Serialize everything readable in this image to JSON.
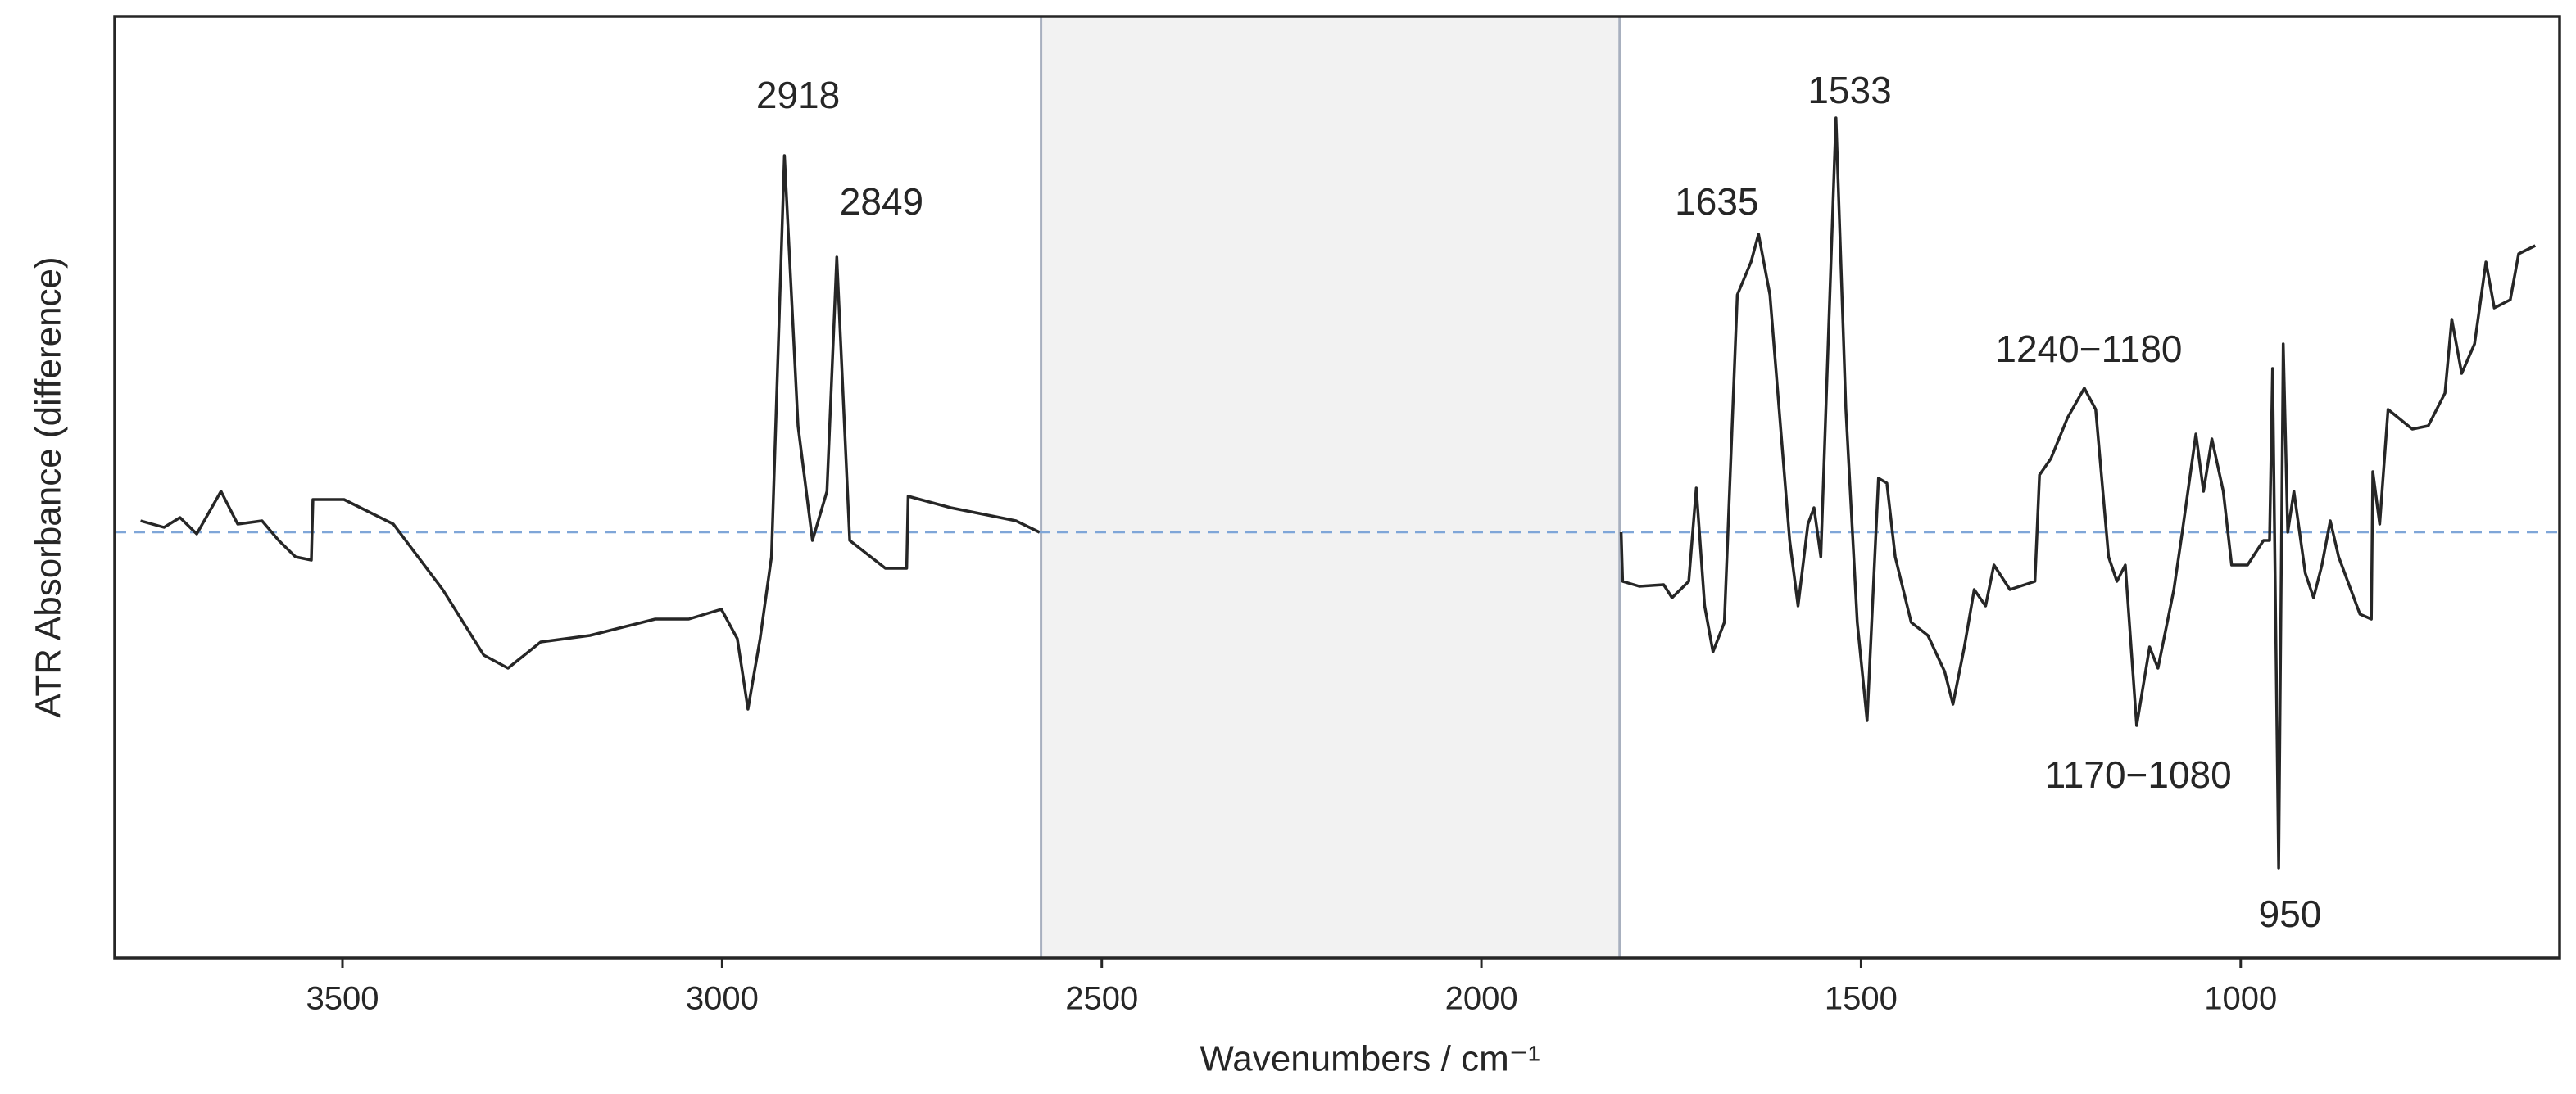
{
  "chart_data": {
    "type": "line",
    "xlabel": "Wavenumbers / cm⁻¹",
    "ylabel": "ATR Absorbance (difference)",
    "xlim": [
      3800,
      580
    ],
    "ylim": [
      -26,
      31.5
    ],
    "xticks": [
      3500,
      3000,
      2500,
      2000,
      1500,
      1000
    ],
    "baseline": 0,
    "excluded_region": [
      2580,
      1818
    ],
    "color": "#262626",
    "x": [
      3766,
      3735,
      3714,
      3692,
      3660,
      3638,
      3606,
      3584,
      3562,
      3541,
      3539,
      3498,
      3433,
      3368,
      3314,
      3282,
      3239,
      3174,
      3088,
      3044,
      3001,
      2980,
      2966,
      2950,
      2935,
      2918,
      2900,
      2881,
      2862,
      2849,
      2832,
      2785,
      2757,
      2755,
      2699,
      2645,
      2613,
      2582,
      2200,
      1816,
      1814,
      1792,
      1760,
      1749,
      1727,
      1717,
      1706,
      1695,
      1680,
      1663,
      1645,
      1635,
      1620,
      1594,
      1583,
      1570,
      1562,
      1553,
      1533,
      1520,
      1505,
      1492,
      1477,
      1466,
      1455,
      1434,
      1412,
      1390,
      1379,
      1364,
      1351,
      1336,
      1325,
      1304,
      1271,
      1265,
      1250,
      1228,
      1206,
      1191,
      1174,
      1163,
      1152,
      1137,
      1120,
      1109,
      1088,
      1077,
      1059,
      1049,
      1038,
      1023,
      1012,
      991,
      970,
      962,
      958,
      950,
      944,
      938,
      930,
      915,
      904,
      893,
      882,
      871,
      843,
      828,
      826,
      817,
      806,
      774,
      753,
      731,
      722,
      709,
      692,
      677,
      666,
      645,
      634,
      612
    ],
    "values": [
      0.7,
      0.3,
      0.9,
      -0.1,
      2.5,
      0.5,
      0.7,
      -0.5,
      -1.5,
      -1.7,
      2.0,
      2.0,
      0.5,
      -3.5,
      -7.5,
      -8.3,
      -6.7,
      -6.3,
      -5.3,
      -5.3,
      -4.7,
      -6.5,
      -10.8,
      -6.5,
      -1.5,
      23.0,
      6.5,
      -0.5,
      2.5,
      16.8,
      -0.5,
      -2.2,
      -2.2,
      2.2,
      1.5,
      1.0,
      0.7,
      0,
      null,
      0,
      -3,
      -3.3,
      -3.2,
      -4,
      -3,
      2.7,
      -4.5,
      -7.3,
      -5.5,
      14.5,
      16.5,
      18.2,
      14.5,
      -0.5,
      -4.5,
      0.5,
      1.5,
      -1.5,
      25.3,
      7.5,
      -5.5,
      -11.5,
      3.3,
      3,
      -1.5,
      -5.5,
      -6.3,
      -8.5,
      -10.5,
      -7,
      -3.5,
      -4.5,
      -2,
      -3.5,
      -3,
      3.5,
      4.5,
      7,
      8.8,
      7.5,
      -1.5,
      -3,
      -2,
      -11.8,
      -7,
      -8.3,
      -3.5,
      0,
      6,
      2.5,
      5.7,
      2.5,
      -2,
      -2,
      -0.5,
      -0.5,
      10,
      -20.5,
      11.5,
      0,
      2.5,
      -2.5,
      -4,
      -2,
      0.7,
      -1.5,
      -5,
      -5.3,
      3.7,
      0.5,
      7.5,
      6.3,
      6.5,
      8.5,
      13,
      9.7,
      11.5,
      16.5,
      13.7,
      14.2,
      17,
      17.5
    ],
    "annotations": [
      {
        "text": "2918",
        "x": 2900,
        "y": 26.5
      },
      {
        "text": "2849",
        "x": 2790,
        "y": 20
      },
      {
        "text": "1635",
        "x": 1690,
        "y": 20
      },
      {
        "text": "1533",
        "x": 1515,
        "y": 26.8
      },
      {
        "text": "1240−1180",
        "x": 1200,
        "y": 11
      },
      {
        "text": "1170−1080",
        "x": 1135,
        "y": -15
      },
      {
        "text": "950",
        "x": 935,
        "y": -23.5
      }
    ]
  }
}
